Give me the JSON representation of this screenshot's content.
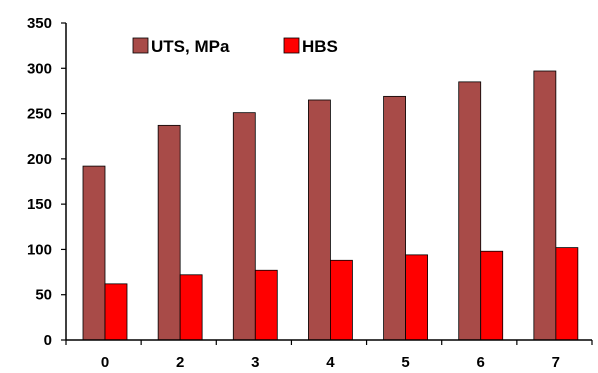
{
  "chart_data": {
    "type": "bar",
    "title": "",
    "xlabel": "",
    "ylabel": "",
    "categories": [
      "0",
      "2",
      "3",
      "4",
      "5",
      "6",
      "7"
    ],
    "ylim": [
      0,
      350
    ],
    "yticks": [
      0,
      50,
      100,
      150,
      200,
      250,
      300,
      350
    ],
    "grid": false,
    "legend_position": "top-left",
    "series": [
      {
        "name": "UTS, MPa",
        "color": "#A84B48",
        "values": [
          192,
          237,
          251,
          265,
          269,
          285,
          297
        ]
      },
      {
        "name": "HBS",
        "color": "#FF0000",
        "values": [
          62,
          72,
          77,
          88,
          94,
          98,
          102
        ]
      }
    ]
  }
}
